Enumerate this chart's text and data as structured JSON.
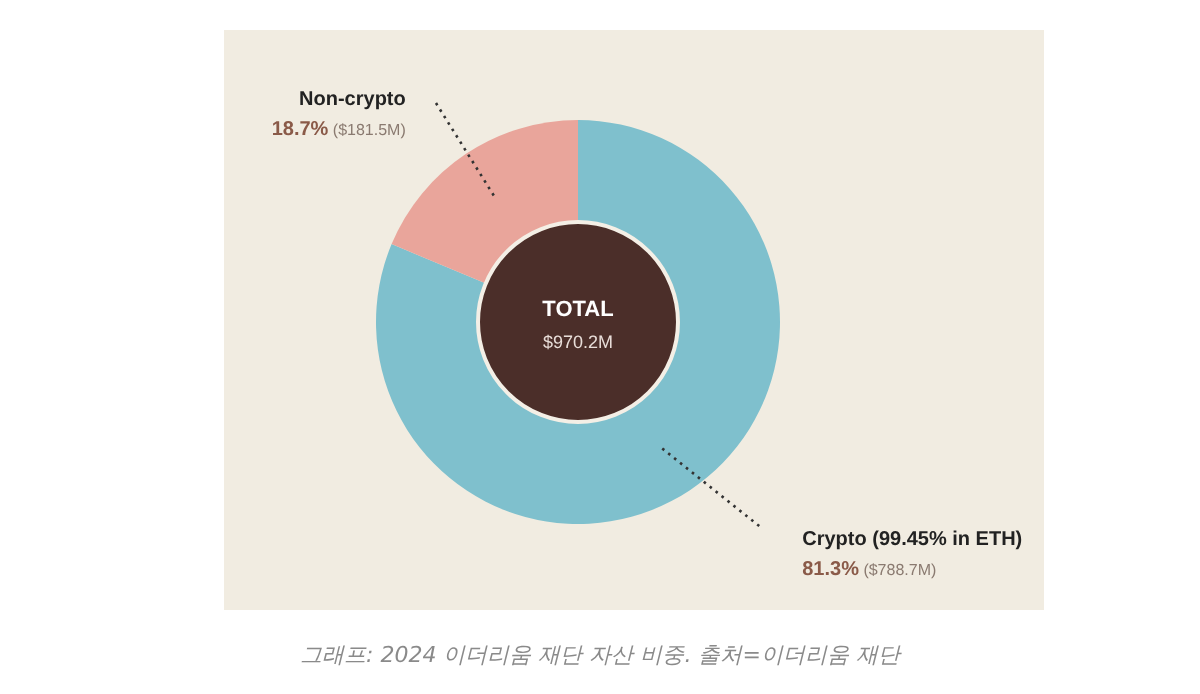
{
  "chart_data": {
    "type": "donut",
    "categories": [
      "Crypto (99.45% in ETH)",
      "Non-crypto"
    ],
    "values": [
      81.3,
      18.7
    ],
    "colors": [
      "#7fc0cd",
      "#e9a59b"
    ],
    "value_labels": [
      "**81.3%** ($788.7M)",
      "**18.7%** ($181.5M)"
    ],
    "annotations": [
      "**TOTAL**",
      "$970.2M",
      "그래프: 2024 이더리움 재단 자산 비중. 출처=이더리움 재단"
    ]
  }
}
